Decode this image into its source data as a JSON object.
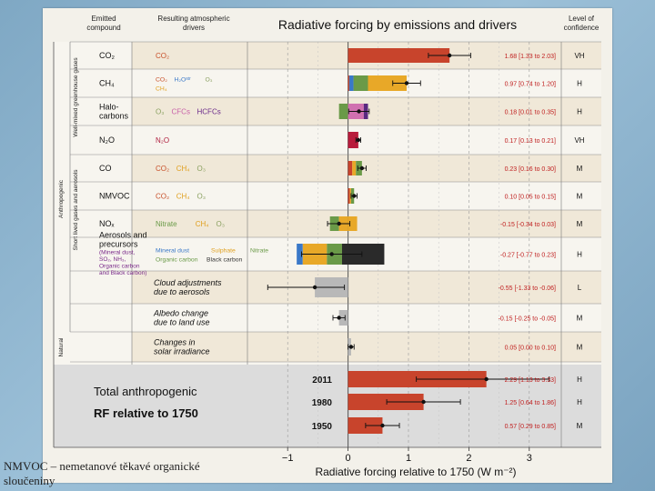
{
  "chart_data": {
    "type": "bar",
    "orientation": "horizontal",
    "title": "Radiative forcing by emissions and drivers",
    "xlabel": "Radiative forcing relative to 1750 (W m⁻²)",
    "xlim": [
      -1.5,
      3.5
    ],
    "xticks": [
      -1,
      0,
      1,
      2,
      3
    ],
    "xtick_labels": [
      "−1",
      "0",
      "1",
      "2",
      "3"
    ],
    "headers": {
      "emitted": [
        "Emitted",
        "compound"
      ],
      "resulting": [
        "Resulting atmospheric",
        "drivers"
      ],
      "confidence": [
        "Level of",
        "confidence"
      ]
    },
    "groups": {
      "anthropogenic": "Anthropogenic",
      "wmghg": "Well-mixed greenhouse gases",
      "short_lived": "Short lived gases and aerosols",
      "natural": "Natural"
    },
    "rows": [
      {
        "compound": [
          "CO₂"
        ],
        "drivers": [
          {
            "t": "CO₂",
            "c": "#c8502a"
          }
        ],
        "segments": [
          {
            "from": 0,
            "to": 1.68,
            "color": "#c8442c"
          }
        ],
        "value": 1.68,
        "ci": [
          1.33,
          2.03
        ],
        "label": "1.68 [1.33 to 2.03]",
        "confidence": "VH"
      },
      {
        "compound": [
          "CH₄"
        ],
        "drivers": [
          {
            "t": "CO₂",
            "c": "#c8502a"
          },
          {
            "t": "H₂Oˢᵗʳ",
            "c": "#3a78c8"
          },
          {
            "t": "O₃",
            "c": "#8aa060"
          },
          {
            "t": "CH₄",
            "c": "#e0a020"
          }
        ],
        "segments": [
          {
            "from": 0,
            "to": 0.02,
            "color": "#c8442c"
          },
          {
            "from": 0.02,
            "to": 0.09,
            "color": "#3a78c8"
          },
          {
            "from": 0.09,
            "to": 0.33,
            "color": "#6a9a48"
          },
          {
            "from": 0.33,
            "to": 0.97,
            "color": "#e8a828"
          }
        ],
        "value": 0.97,
        "ci": [
          0.74,
          1.2
        ],
        "label": "0.97 [0.74 to 1.20]",
        "confidence": "H"
      },
      {
        "compound": [
          "Halo-",
          "carbons"
        ],
        "drivers": [
          {
            "t": "O₃",
            "c": "#8aa060"
          },
          {
            "t": "CFCs",
            "c": "#c860a8"
          },
          {
            "t": "HCFCs",
            "c": "#6a2a8a"
          }
        ],
        "segments": [
          {
            "from": -0.15,
            "to": 0,
            "color": "#6a9a48"
          },
          {
            "from": 0,
            "to": 0.26,
            "color": "#d070b0"
          },
          {
            "from": 0.26,
            "to": 0.33,
            "color": "#5a2a80"
          }
        ],
        "value": 0.18,
        "ci": [
          0.01,
          0.35
        ],
        "label": "0.18 [0.01 to 0.35]",
        "confidence": "H"
      },
      {
        "compound": [
          "N₂O"
        ],
        "drivers": [
          {
            "t": "N₂O",
            "c": "#b02040"
          }
        ],
        "segments": [
          {
            "from": 0,
            "to": 0.17,
            "color": "#b81c3c"
          }
        ],
        "value": 0.17,
        "ci": [
          0.13,
          0.21
        ],
        "label": "0.17 [0.13 to 0.21]",
        "confidence": "VH"
      },
      {
        "compound": [
          "CO"
        ],
        "drivers": [
          {
            "t": "CO₂",
            "c": "#c8502a"
          },
          {
            "t": "CH₄",
            "c": "#e0a020"
          },
          {
            "t": "O₃",
            "c": "#8aa060"
          }
        ],
        "segments": [
          {
            "from": 0,
            "to": 0.07,
            "color": "#c8442c"
          },
          {
            "from": 0.07,
            "to": 0.13,
            "color": "#e8a828"
          },
          {
            "from": 0.13,
            "to": 0.23,
            "color": "#6a9a48"
          }
        ],
        "value": 0.23,
        "ci": [
          0.16,
          0.3
        ],
        "label": "0.23 [0.16 to 0.30]",
        "confidence": "M"
      },
      {
        "compound": [
          "NMVOC"
        ],
        "drivers": [
          {
            "t": "CO₂",
            "c": "#c8502a"
          },
          {
            "t": "CH₄",
            "c": "#e0a020"
          },
          {
            "t": "O₃",
            "c": "#8aa060"
          }
        ],
        "segments": [
          {
            "from": 0,
            "to": 0.03,
            "color": "#c8442c"
          },
          {
            "from": 0.03,
            "to": 0.05,
            "color": "#e8a828"
          },
          {
            "from": 0.05,
            "to": 0.1,
            "color": "#6a9a48"
          }
        ],
        "value": 0.1,
        "ci": [
          0.05,
          0.15
        ],
        "label": "0.10 [0.05 to 0.15]",
        "confidence": "M"
      },
      {
        "compound": [
          "NOₓ"
        ],
        "drivers": [
          {
            "t": "Nitrate",
            "c": "#6a9a48"
          },
          {
            "t": "CH₄",
            "c": "#e0a020"
          },
          {
            "t": "O₃",
            "c": "#8aa060"
          }
        ],
        "segments": [
          {
            "from": -0.3,
            "to": -0.15,
            "color": "#6a9a48"
          },
          {
            "from": -0.15,
            "to": 0,
            "color": "#e8a828"
          },
          {
            "from": 0,
            "to": 0.15,
            "color": "#e8a828"
          }
        ],
        "value": -0.15,
        "ci": [
          -0.34,
          0.03
        ],
        "label": "-0.15 [-0.34 to 0.03]",
        "confidence": "M"
      },
      {
        "compound": [
          "Aerosols and",
          "precursors"
        ],
        "sub": [
          "(Mineral dust,",
          "SO₂, NH₃,",
          "Organic carbon",
          "and Black carbon)"
        ],
        "drivers": [
          {
            "t": "Mineral dust",
            "c": "#3a78c8"
          },
          {
            "t": "Sulphate",
            "c": "#e0a020"
          },
          {
            "t": "Nitrate",
            "c": "#6a9a48"
          },
          {
            "t": "Organic carbon",
            "c": "#6a9a48"
          },
          {
            "t": "Black carbon",
            "c": "#333333"
          }
        ],
        "segments": [
          {
            "from": -0.85,
            "to": -0.75,
            "color": "#3a78c8"
          },
          {
            "from": -0.75,
            "to": -0.35,
            "color": "#e8a828"
          },
          {
            "from": -0.35,
            "to": -0.1,
            "color": "#6a9a48"
          },
          {
            "from": -0.1,
            "to": 0.6,
            "color": "#2a2a2a"
          }
        ],
        "value": -0.27,
        "ci": [
          -0.77,
          0.23
        ],
        "label": "-0.27 [-0.77 to 0.23]",
        "confidence": "H"
      },
      {
        "compound": [
          "Cloud adjustments",
          "due to aerosols"
        ],
        "drivers": [],
        "segments": [
          {
            "from": -0.55,
            "to": 0,
            "color": "#b8b8b8"
          }
        ],
        "value": -0.55,
        "ci": [
          -1.33,
          -0.06
        ],
        "label": "-0.55 [-1.33 to -0.06]",
        "confidence": "L"
      },
      {
        "compound": [
          "Albedo change",
          "due to land use"
        ],
        "drivers": [],
        "segments": [
          {
            "from": -0.15,
            "to": 0,
            "color": "#b8b8b8"
          }
        ],
        "value": -0.15,
        "ci": [
          -0.25,
          -0.05
        ],
        "label": "-0.15 [-0.25 to -0.05]",
        "confidence": "M"
      },
      {
        "compound": [
          "Changes in",
          "solar irradiance"
        ],
        "drivers": [],
        "segments": [
          {
            "from": 0,
            "to": 0.05,
            "color": "#b8b8b8"
          }
        ],
        "value": 0.05,
        "ci": [
          0.0,
          0.1
        ],
        "label": "0.05 [0.00 to 0.10]",
        "confidence": "M"
      }
    ],
    "totals": {
      "title": [
        "Total anthropogenic",
        "RF relative to 1750"
      ],
      "rows": [
        {
          "year": "2011",
          "value": 2.29,
          "ci": [
            1.13,
            3.33
          ],
          "label": "2.29 [1.13 to 3.33]",
          "confidence": "H"
        },
        {
          "year": "1980",
          "value": 1.25,
          "ci": [
            0.64,
            1.86
          ],
          "label": "1.25 [0.64 to 1.86]",
          "confidence": "H"
        },
        {
          "year": "1950",
          "value": 0.57,
          "ci": [
            0.29,
            0.85
          ],
          "label": "0.57 [0.29 to 0.85]",
          "confidence": "M"
        }
      ],
      "color": "#c8442c"
    }
  },
  "caption": "NMVOC – nemetanové těkavé organické sloučeniny"
}
